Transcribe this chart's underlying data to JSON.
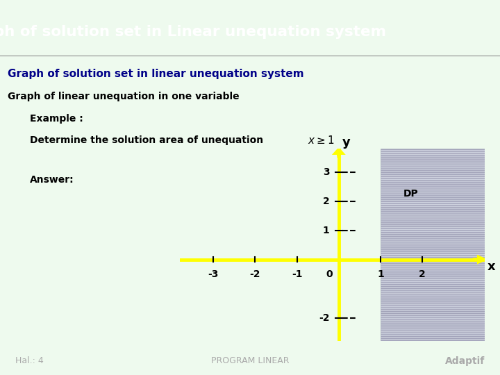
{
  "title_bar": "Graph of solution set in Linear unequation system",
  "title_bar_bg": "#1e5c1e",
  "title_bar_color": "#ffffff",
  "body_bg": "#eefaee",
  "subtitle1": "Graph of solution set in linear unequation system",
  "subtitle2": "Graph of linear unequation in one variable",
  "line3": "    Example :",
  "line4": "    Determine the solution area of unequation",
  "inequality": "x \\geq 1",
  "answer_label": "Answer:",
  "dp_label": "DP",
  "x_label": "x",
  "y_label": "y",
  "axis_color": "#ffff00",
  "shade_color": "#c0c0d8",
  "shade_alpha": 0.7,
  "footer_bg": "#1e5c1e",
  "footer_color": "#aaaaaa",
  "footer_left": "Hal.: 4",
  "footer_center": "PROGRAM LINEAR",
  "footer_right": "Adaptif",
  "x_ticks": [
    -3,
    -2,
    -1,
    1,
    2
  ],
  "y_ticks": [
    -2,
    1,
    2,
    3
  ],
  "xlim": [
    -3.8,
    3.5
  ],
  "ylim": [
    -2.8,
    3.8
  ]
}
